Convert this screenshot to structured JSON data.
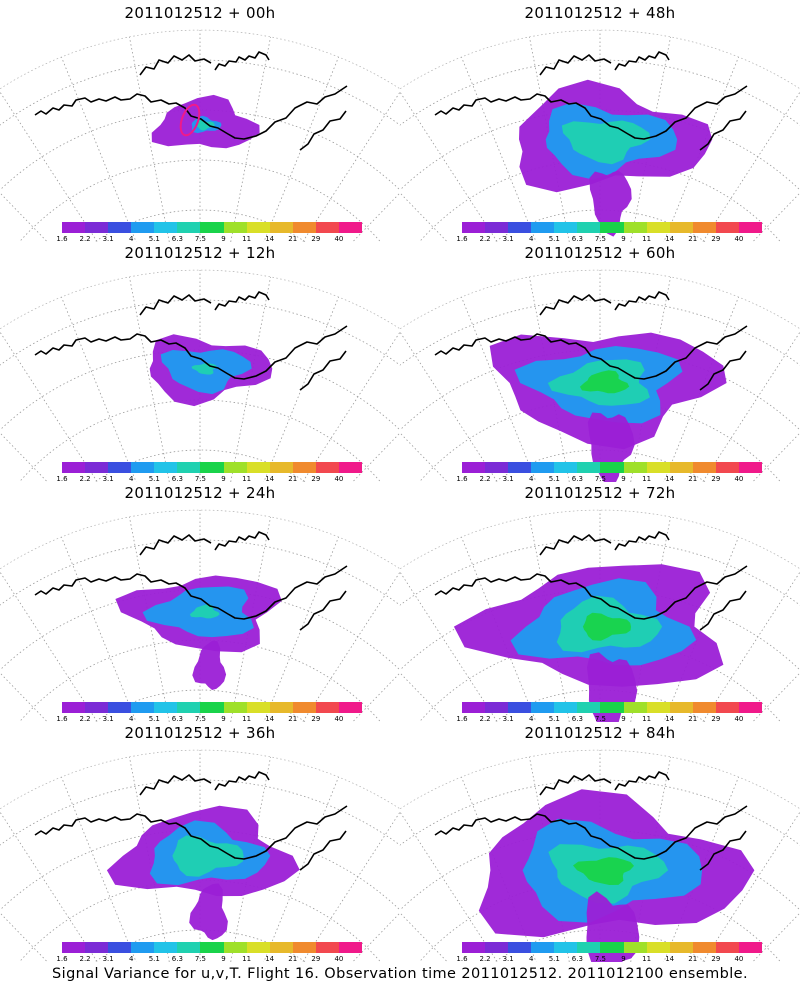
{
  "panels": [
    {
      "title": "2011012512 + 00h",
      "lead": 0
    },
    {
      "title": "2011012512 + 48h",
      "lead": 48
    },
    {
      "title": "2011012512 + 12h",
      "lead": 12
    },
    {
      "title": "2011012512 + 60h",
      "lead": 60
    },
    {
      "title": "2011012512 + 24h",
      "lead": 24
    },
    {
      "title": "2011012512 + 72h",
      "lead": 72
    },
    {
      "title": "2011012512 + 36h",
      "lead": 36
    },
    {
      "title": "2011012512 + 84h",
      "lead": 84
    }
  ],
  "colorbar": {
    "labels": [
      "1.6",
      "2.2",
      "3.1",
      "4",
      "5.1",
      "6.3",
      "7.5",
      "9",
      "11",
      "14",
      "21",
      "29",
      "40"
    ],
    "colors": [
      "#9b1fd6",
      "#7b2bd6",
      "#3a4fe0",
      "#1f9bf0",
      "#22c3e8",
      "#1fd1b0",
      "#19d34a",
      "#9fe02a",
      "#d9df28",
      "#e7b92b",
      "#f08a2e",
      "#f2484f",
      "#f01a8a"
    ]
  },
  "footer": "Signal Variance for u,v,T. Flight 16. Observation time 2011012512. 2011012100 ensemble."
}
